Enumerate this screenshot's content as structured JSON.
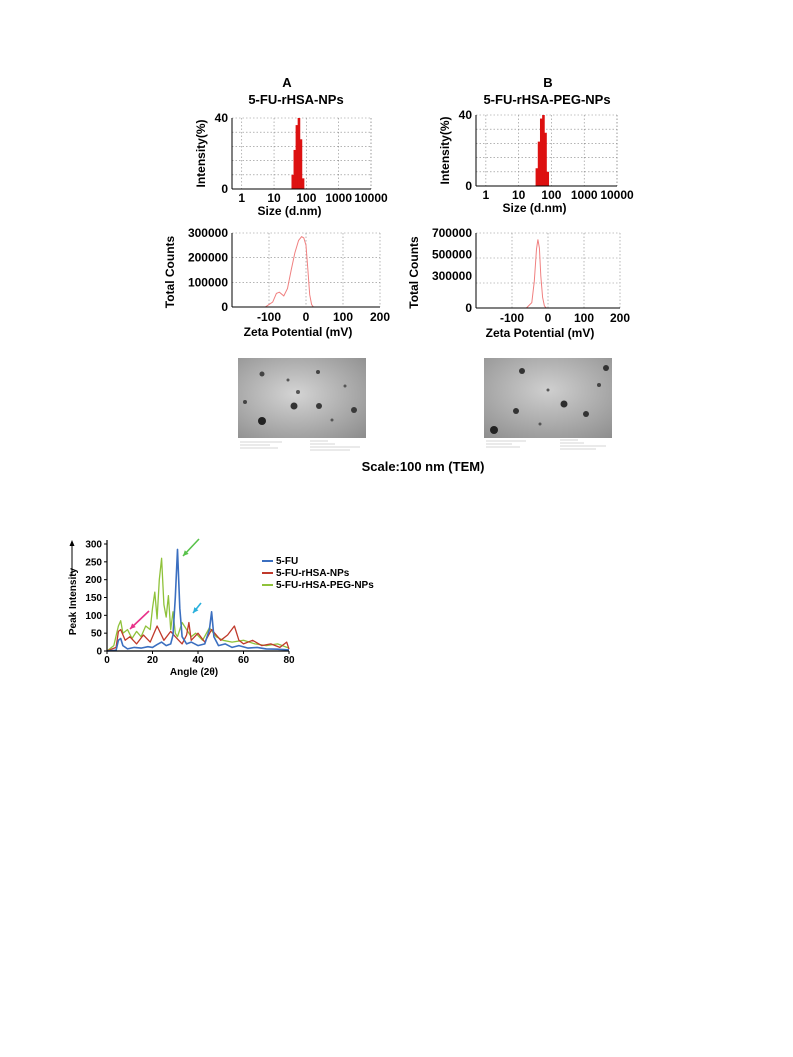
{
  "panels": {
    "A": {
      "letter": "A",
      "title": "5-FU-rHSA-NPs"
    },
    "B": {
      "letter": "B",
      "title": "5-FU-rHSA-PEG-NPs"
    },
    "tem_caption": "Scale:100 nm (TEM)"
  },
  "colors": {
    "bar": "#dd1111",
    "zeta_line": "#f08080",
    "grid": "#888888",
    "s_5fu": "#3b6fc0",
    "s_rhsa": "#c0392b",
    "s_peg": "#8fc23a",
    "arrow_pink": "#e8318a",
    "arrow_green": "#58c24a",
    "arrow_cyan": "#2ab0dc"
  },
  "chart_data": [
    {
      "id": "size_A",
      "type": "bar",
      "title": "5-FU-rHSA-NPs",
      "xlabel": "Size (d.nm)",
      "ylabel": "Intensity(%)",
      "xscale": "log",
      "xlim": [
        0.5,
        10000
      ],
      "ylim": [
        0,
        40
      ],
      "xticks": [
        "1",
        "10",
        "100",
        "1000",
        "10000"
      ],
      "yticks": [
        "0",
        "40"
      ],
      "grid": true,
      "x": [
        38,
        44,
        51,
        59,
        68,
        79
      ],
      "values": [
        8,
        22,
        36,
        40,
        28,
        6
      ]
    },
    {
      "id": "size_B",
      "type": "bar",
      "title": "5-FU-rHSA-PEG-NPs",
      "xlabel": "Size (d.nm)",
      "ylabel": "Intensity(%)",
      "xscale": "log",
      "xlim": [
        0.5,
        10000
      ],
      "ylim": [
        0,
        40
      ],
      "xticks": [
        "1",
        "10",
        "100",
        "1000",
        "10000"
      ],
      "yticks": [
        "0",
        "40"
      ],
      "grid": true,
      "x": [
        36,
        42,
        49,
        57,
        66,
        77
      ],
      "values": [
        10,
        25,
        38,
        40,
        30,
        8
      ]
    },
    {
      "id": "zeta_A",
      "type": "line",
      "xlabel": "Zeta Potential (mV)",
      "ylabel": "Total Counts",
      "xlim": [
        -200,
        200
      ],
      "ylim": [
        0,
        300000
      ],
      "xticks": [
        "-100",
        "0",
        "100",
        "200"
      ],
      "yticks": [
        "0",
        "100000",
        "200000",
        "300000"
      ],
      "grid": true,
      "x": [
        -200,
        -110,
        -90,
        -80,
        -72,
        -60,
        -50,
        -40,
        -30,
        -20,
        -12,
        -6,
        0,
        5,
        10,
        15,
        20,
        30,
        200
      ],
      "y": [
        0,
        0,
        20000,
        55000,
        60000,
        45000,
        75000,
        150000,
        220000,
        270000,
        285000,
        280000,
        250000,
        150000,
        50000,
        10000,
        0,
        0,
        0
      ]
    },
    {
      "id": "zeta_B",
      "type": "line",
      "xlabel": "Zeta Potential (mV)",
      "ylabel": "Total Counts",
      "xlim": [
        -200,
        200
      ],
      "ylim": [
        0,
        700000
      ],
      "xticks": [
        "-100",
        "0",
        "100",
        "200"
      ],
      "yticks": [
        "0",
        "300000",
        "500000",
        "700000"
      ],
      "grid": true,
      "x": [
        -200,
        -60,
        -45,
        -38,
        -32,
        -28,
        -24,
        -20,
        -15,
        -10,
        -5,
        200
      ],
      "y": [
        0,
        0,
        50000,
        250000,
        550000,
        640000,
        560000,
        300000,
        100000,
        20000,
        0,
        0
      ]
    },
    {
      "id": "xrd",
      "type": "line",
      "xlabel": "Angle (2θ)",
      "ylabel": "Peak Intensity",
      "xlim": [
        0,
        80
      ],
      "ylim": [
        0,
        300
      ],
      "xticks": [
        "0",
        "20",
        "40",
        "60",
        "80"
      ],
      "yticks": [
        "0",
        "50",
        "100",
        "150",
        "200",
        "250",
        "300"
      ],
      "grid": false,
      "legend": "right",
      "series": [
        {
          "name": "5-FU",
          "x": [
            0,
            4,
            5,
            6,
            7,
            9,
            12,
            15,
            18,
            20,
            22,
            24,
            26,
            28,
            29,
            30,
            31,
            32,
            33,
            35,
            37,
            40,
            43,
            45,
            46,
            47,
            49,
            52,
            55,
            58,
            62,
            66,
            70,
            75,
            80
          ],
          "y": [
            0,
            2,
            30,
            35,
            15,
            6,
            10,
            8,
            12,
            10,
            18,
            25,
            15,
            20,
            45,
            150,
            285,
            120,
            40,
            20,
            25,
            15,
            20,
            60,
            110,
            40,
            15,
            20,
            10,
            15,
            8,
            10,
            6,
            5,
            3
          ]
        },
        {
          "name": "5-FU-rHSA-NPs",
          "x": [
            0,
            4,
            5,
            6,
            8,
            10,
            13,
            16,
            19,
            22,
            25,
            28,
            30,
            33,
            35,
            36,
            37,
            40,
            43,
            46,
            50,
            53,
            56,
            58,
            60,
            64,
            68,
            72,
            76,
            79,
            80
          ],
          "y": [
            0,
            10,
            55,
            60,
            30,
            40,
            20,
            45,
            25,
            70,
            30,
            55,
            40,
            20,
            45,
            80,
            30,
            50,
            25,
            60,
            30,
            45,
            70,
            30,
            20,
            30,
            15,
            20,
            10,
            25,
            5
          ]
        },
        {
          "name": "5-FU-rHSA-PEG-NPs",
          "x": [
            0,
            3,
            5,
            6,
            7,
            9,
            11,
            13,
            15,
            17,
            19,
            20,
            21,
            22,
            23,
            24,
            25,
            26,
            27,
            28,
            29,
            30,
            31,
            33,
            35,
            37,
            39,
            42,
            45,
            48,
            51,
            55,
            60,
            65,
            70,
            75,
            80
          ],
          "y": [
            0,
            15,
            70,
            85,
            50,
            60,
            35,
            55,
            40,
            70,
            60,
            120,
            165,
            90,
            200,
            260,
            130,
            95,
            155,
            60,
            110,
            50,
            40,
            80,
            60,
            40,
            50,
            30,
            65,
            40,
            30,
            25,
            30,
            20,
            15,
            20,
            8
          ]
        }
      ]
    }
  ]
}
